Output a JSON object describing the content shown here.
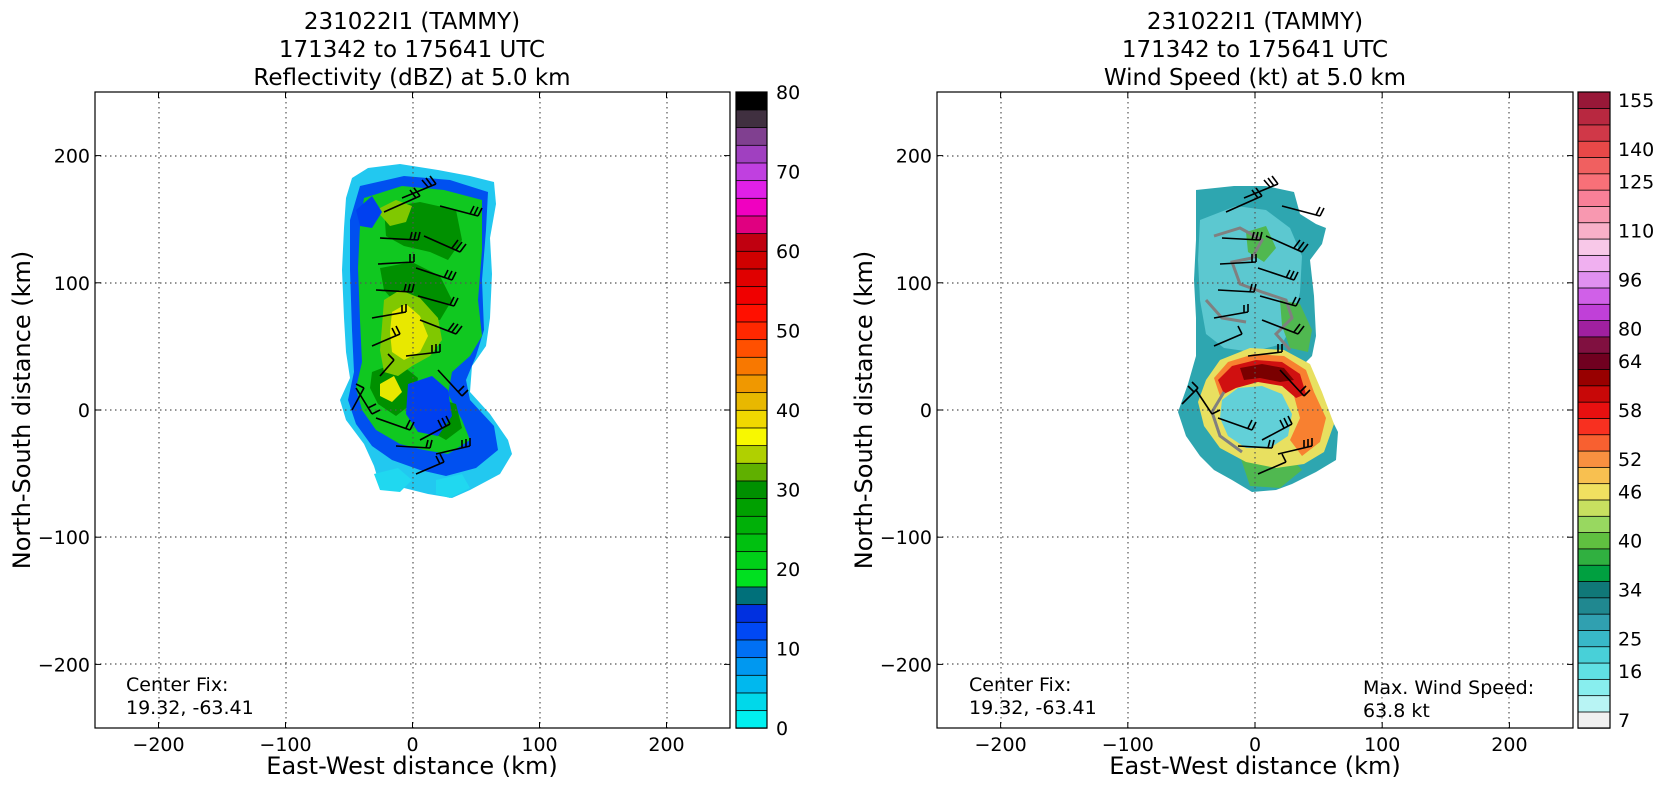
{
  "chart_data": [
    {
      "type": "heatmap",
      "title": [
        "231022I1 (TAMMY)",
        "171342 to 175641 UTC",
        "Reflectivity (dBZ) at 5.0 km"
      ],
      "xlabel": "East-West distance (km)",
      "ylabel": "North-South distance (km)",
      "xlim": [
        -250,
        250
      ],
      "ylim": [
        -250,
        250
      ],
      "xticks": [
        -200,
        -100,
        0,
        100,
        200
      ],
      "yticks": [
        -200,
        -100,
        0,
        100,
        200
      ],
      "xtick_labels": [
        "−200",
        "−100",
        "0",
        "100",
        "200"
      ],
      "ytick_labels": [
        "−200",
        "−100",
        "0",
        "100",
        "200"
      ],
      "grid": true,
      "annotations": [
        "Center Fix:",
        "19.32, -63.41"
      ],
      "colorbar": {
        "min": 0,
        "max": 80,
        "tick_values": [
          0,
          10,
          20,
          30,
          40,
          50,
          60,
          70,
          80
        ],
        "tick_labels": [
          "0",
          "10",
          "20",
          "30",
          "40",
          "50",
          "60",
          "70",
          "80"
        ],
        "colors": [
          "#00f0f0",
          "#00d8ea",
          "#00b8ee",
          "#0098f0",
          "#0070f4",
          "#0048f4",
          "#0030e0",
          "#00707a",
          "#00e020",
          "#00d018",
          "#00c010",
          "#00b008",
          "#00a000",
          "#009000",
          "#60b000",
          "#b0d000",
          "#f8f800",
          "#f0d800",
          "#e8b800",
          "#f09800",
          "#f87800",
          "#ff5000",
          "#ff2800",
          "#ff1000",
          "#f00000",
          "#e00000",
          "#d00000",
          "#c00010",
          "#e00080",
          "#f000c0",
          "#e020e8",
          "#c040e0",
          "#a040c0",
          "#804090",
          "#403040",
          "#000000"
        ]
      }
    },
    {
      "type": "heatmap",
      "title": [
        "231022I1 (TAMMY)",
        "171342 to 175641 UTC",
        "Wind Speed (kt) at 5.0 km"
      ],
      "xlabel": "East-West distance (km)",
      "ylabel": "North-South distance (km)",
      "xlim": [
        -250,
        250
      ],
      "ylim": [
        -250,
        250
      ],
      "xticks": [
        -200,
        -100,
        0,
        100,
        200
      ],
      "yticks": [
        -200,
        -100,
        0,
        100,
        200
      ],
      "xtick_labels": [
        "−200",
        "−100",
        "0",
        "100",
        "200"
      ],
      "ytick_labels": [
        "−200",
        "−100",
        "0",
        "100",
        "200"
      ],
      "grid": true,
      "annotations": [
        "Center Fix:",
        "19.32, -63.41",
        "Max. Wind Speed:",
        "63.8 kt"
      ],
      "max_wind_speed_kt": 63.8,
      "colorbar": {
        "tick_labels": [
          "7",
          "16",
          "25",
          "34",
          "40",
          "46",
          "52",
          "58",
          "64",
          "80",
          "96",
          "110",
          "125",
          "140",
          "155"
        ],
        "colors": [
          "#f0f0f0",
          "#b8f4f4",
          "#88eeee",
          "#60e0e4",
          "#48d0d8",
          "#38b8c8",
          "#30a0b0",
          "#208890",
          "#107878",
          "#00a040",
          "#30b040",
          "#60c040",
          "#98d860",
          "#c8e060",
          "#f0e060",
          "#f8c050",
          "#f89040",
          "#f86030",
          "#f83020",
          "#e81010",
          "#c80808",
          "#980000",
          "#700020",
          "#801040",
          "#a020a0",
          "#c040d8",
          "#d060e8",
          "#e090f0",
          "#f0b0f0",
          "#f8c8e8",
          "#f8b0c8",
          "#f898b0",
          "#f88098",
          "#f87078",
          "#f06060",
          "#e84848",
          "#d03848",
          "#b82840",
          "#981838"
        ]
      }
    }
  ]
}
